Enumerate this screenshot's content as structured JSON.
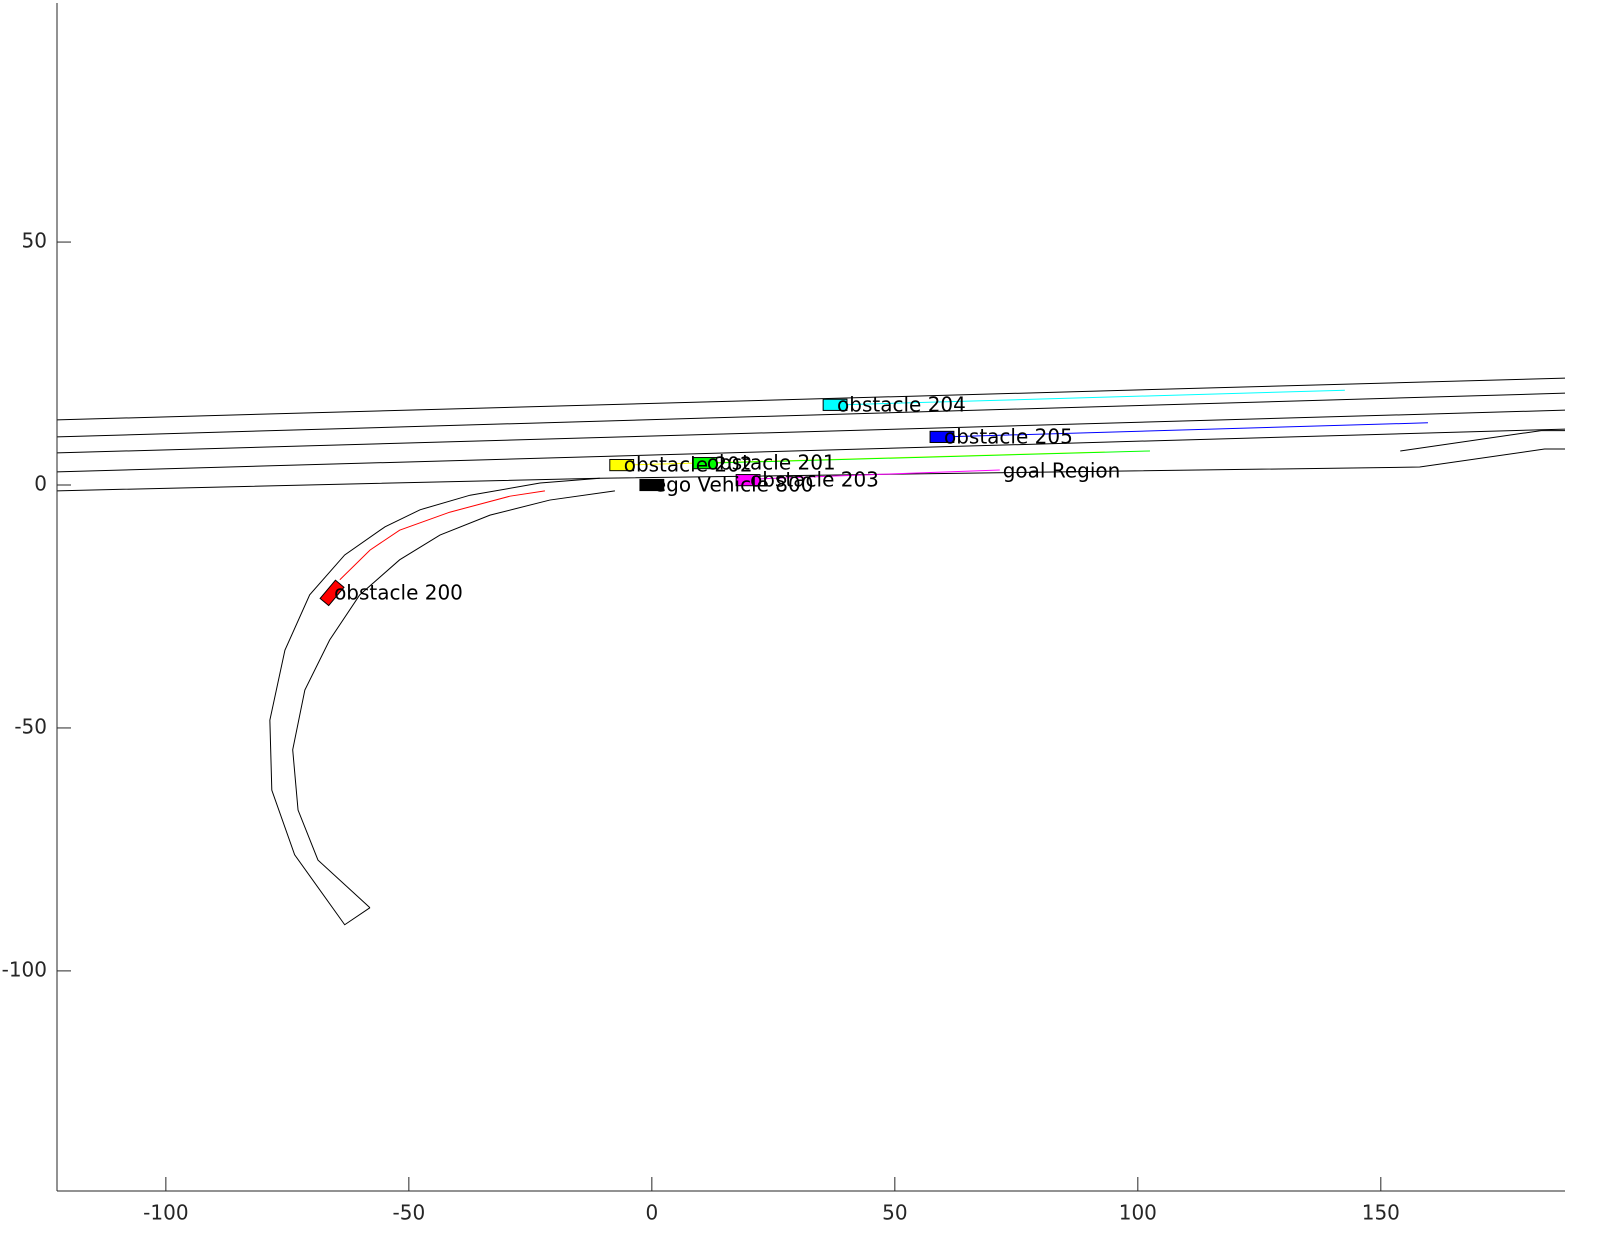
{
  "chart_data": {
    "type": "scenario",
    "xlim": [
      -122.4,
      187.9
    ],
    "ylim": [
      -145.3,
      99.2
    ],
    "xticks": [
      -100,
      -50,
      0,
      50,
      100,
      150
    ],
    "yticks": [
      -100,
      -50,
      0,
      50
    ],
    "roads": [
      {
        "x": [
          -122.4,
          187.9
        ],
        "y": [
          13.4,
          22.0
        ]
      },
      {
        "x": [
          -122.4,
          187.9
        ],
        "y": [
          9.9,
          18.9
        ]
      },
      {
        "x": [
          -122.4,
          187.9
        ],
        "y": [
          6.6,
          15.4
        ]
      },
      {
        "x": [
          -122.4,
          187.9
        ],
        "y": [
          2.7,
          11.5
        ]
      },
      {
        "x": [
          -122.4,
          -10.7,
          158.0,
          183.7,
          187.9
        ],
        "y": [
          -1.2,
          1.4,
          3.7,
          7.4,
          7.4
        ]
      },
      {
        "x": [
          154.0,
          183.0,
          187.9
        ],
        "y": [
          7.0,
          11.2,
          11.2
        ]
      },
      {
        "x": [
          -10.7,
          -23.0,
          -37.4,
          -47.7,
          -54.9,
          -63.2,
          -70.4,
          -75.5,
          -78.6,
          -78.2,
          -73.5,
          -63.2,
          -58.0
        ],
        "y": [
          1.4,
          0.4,
          -2.1,
          -5.1,
          -8.6,
          -14.4,
          -22.6,
          -34.0,
          -48.4,
          -62.8,
          -76.1,
          -90.5,
          -87.0
        ]
      },
      {
        "x": [
          -7.6,
          -21.0,
          -33.3,
          -43.6,
          -51.9,
          -60.1,
          -66.3,
          -71.4,
          -73.9,
          -72.8,
          -68.7,
          -58.0
        ],
        "y": [
          -1.2,
          -3.1,
          -6.2,
          -10.3,
          -15.4,
          -22.6,
          -31.9,
          -42.2,
          -54.5,
          -66.9,
          -77.2,
          -87.0
        ]
      }
    ],
    "trajectories": [
      {
        "color": "#ff0000",
        "x": [
          -64.2,
          -58.0,
          -51.9,
          -41.6,
          -29.2,
          -22.0
        ],
        "y": [
          -19.5,
          -13.4,
          -9.3,
          -5.6,
          -2.3,
          -1.2
        ]
      },
      {
        "color": "#00ffff",
        "x": [
          38.7,
          142.6
        ],
        "y": [
          16.5,
          19.5
        ]
      },
      {
        "color": "#0000ff",
        "x": [
          60.3,
          159.7
        ],
        "y": [
          9.9,
          12.8
        ]
      },
      {
        "color": "#ffff00",
        "x": [
          -5.6,
          93.2
        ],
        "y": [
          4.1,
          6.8
        ]
      },
      {
        "color": "#00ff00",
        "x": [
          11.9,
          102.5
        ],
        "y": [
          4.5,
          7.0
        ]
      },
      {
        "color": "#ff00ff",
        "x": [
          20.2,
          71.6
        ],
        "y": [
          1.2,
          3.1
        ]
      }
    ],
    "vehicles": [
      {
        "label": "obstacle 200",
        "color": "#ff0000",
        "x": -65.8,
        "y": -22.2,
        "heading": 50
      },
      {
        "label": "obstacle 201",
        "color": "#00ff00",
        "x": 10.9,
        "y": 4.5,
        "heading": 0
      },
      {
        "label": "obstacle 202",
        "color": "#ffff00",
        "x": -6.2,
        "y": 4.1,
        "heading": 0
      },
      {
        "label": "obstacle 203",
        "color": "#ff00ff",
        "x": 19.8,
        "y": 1.0,
        "heading": 0
      },
      {
        "label": "obstacle 204",
        "color": "#00ffff",
        "x": 37.7,
        "y": 16.5,
        "heading": 0
      },
      {
        "label": "obstacle 205",
        "color": "#0000ff",
        "x": 59.7,
        "y": 9.9,
        "heading": 0
      },
      {
        "label": "ego Vehicle 800",
        "color": "#000000",
        "x": 0,
        "y": 0,
        "heading": 0
      }
    ],
    "goal": {
      "label": "goal Region",
      "x": 72.2,
      "y": 2.7
    }
  }
}
